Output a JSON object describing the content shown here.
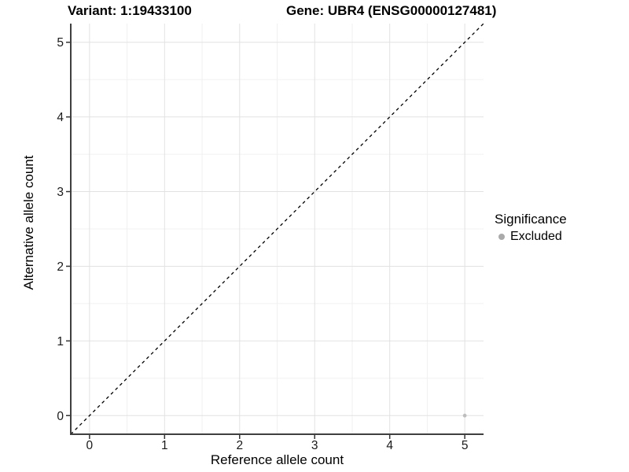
{
  "titles": {
    "variant": "Variant: 1:19433100",
    "gene": "Gene: UBR4 (ENSG00000127481)"
  },
  "legend": {
    "title": "Significance",
    "items": [
      {
        "label": "Excluded",
        "color": "#aaaaaa"
      }
    ]
  },
  "colors": {
    "background": "#ffffff",
    "grid_major": "#e2e2e2",
    "grid_minor": "#f0f0f0",
    "axis_line": "#3f3f3f",
    "tick_mark": "#333333",
    "tick_label": "#1a1a1a",
    "reference_line": "#000000",
    "excluded_point": "#bdbdbd"
  },
  "chart_data": {
    "type": "scatter",
    "title": "Variant: 1:19433100    Gene: UBR4 (ENSG00000127481)",
    "xlabel": "Reference allele count",
    "ylabel": "Alternative allele count",
    "xlim": [
      -0.25,
      5.25
    ],
    "ylim": [
      -0.25,
      5.25
    ],
    "x_ticks": [
      0,
      1,
      2,
      3,
      4,
      5
    ],
    "y_ticks": [
      0,
      1,
      2,
      3,
      4,
      5
    ],
    "x_minor_ticks": [
      0.5,
      1.5,
      2.5,
      3.5,
      4.5
    ],
    "y_minor_ticks": [
      0.5,
      1.5,
      2.5,
      3.5,
      4.5
    ],
    "grid": true,
    "legend_position": "right",
    "legend_title": "Significance",
    "series": [
      {
        "name": "Excluded",
        "color": "#bdbdbd",
        "points": [
          {
            "x": 5,
            "y": 0
          }
        ]
      }
    ],
    "reference_line": {
      "kind": "identity",
      "equation": "y = x",
      "style": "dashed",
      "color": "#000000"
    }
  }
}
